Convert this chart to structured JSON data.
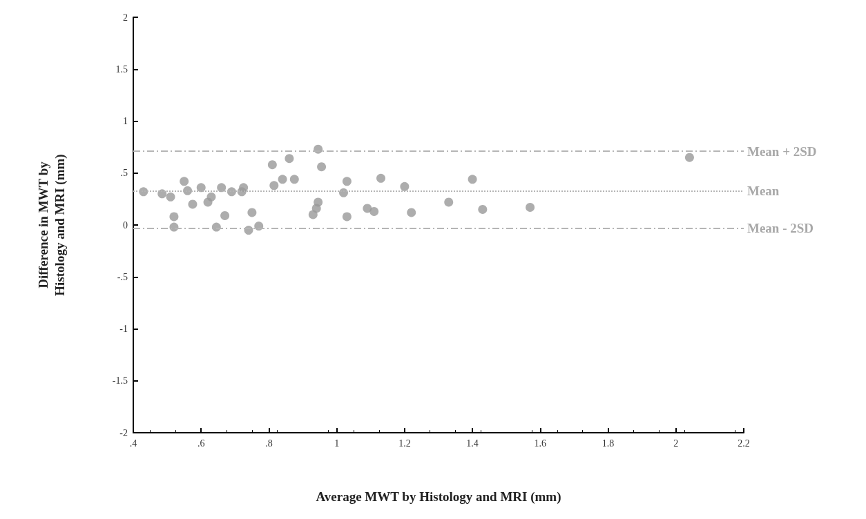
{
  "chart_data": {
    "type": "scatter",
    "xlabel": "Average MWT by Histology and MRI (mm)",
    "ylabel": "Difference in MWT by\nHistology and MRI (mm)",
    "series": [
      {
        "color": "#999999",
        "x": [
          0.43,
          0.485,
          0.51,
          0.55,
          0.56,
          0.52,
          0.52,
          0.575,
          0.6,
          0.63,
          0.62,
          0.66,
          0.69,
          0.72,
          0.725,
          0.67,
          0.645,
          0.74,
          0.75,
          0.77,
          0.81,
          0.815,
          0.84,
          0.875,
          0.86,
          0.945,
          0.955,
          0.945,
          0.94,
          0.93,
          1.03,
          1.02,
          1.03,
          1.13,
          1.09,
          1.11,
          1.2,
          1.22,
          1.33,
          1.4,
          1.43,
          1.57,
          2.04
        ],
        "values": [
          0.32,
          0.3,
          0.27,
          0.42,
          0.33,
          0.08,
          -0.02,
          0.2,
          0.36,
          0.27,
          0.22,
          0.36,
          0.32,
          0.32,
          0.36,
          0.09,
          -0.02,
          -0.05,
          0.12,
          -0.01,
          0.58,
          0.38,
          0.44,
          0.44,
          0.64,
          0.73,
          0.56,
          0.22,
          0.16,
          0.1,
          0.42,
          0.31,
          0.08,
          0.45,
          0.16,
          0.13,
          0.37,
          0.12,
          0.22,
          0.44,
          0.15,
          0.17,
          0.65
        ]
      }
    ],
    "xlim": [
      0.4,
      2.2
    ],
    "xticks": [
      {
        "value": 0.4,
        "label": ".4"
      },
      {
        "value": 0.6,
        "label": ".6"
      },
      {
        "value": 0.8,
        "label": ".8"
      },
      1,
      1.2,
      1.4,
      1.6,
      1.8,
      2,
      2.2
    ],
    "ylim": [
      -2,
      2
    ],
    "yticks": [
      -2,
      -1.5,
      -1,
      {
        "value": -0.5,
        "label": "-.5"
      },
      0,
      {
        "value": 0.5,
        "label": ".5"
      },
      1,
      1.5,
      2
    ],
    "ref_lines": [
      {
        "axis": "y",
        "value": 0.71,
        "label": "Mean + 2SD",
        "color": "#b5b5b5",
        "line_style": "dashed"
      },
      {
        "axis": "y",
        "value": 0.33,
        "label": "Mean",
        "color": "#b5b5b5",
        "line_style": "dotted"
      },
      {
        "axis": "y",
        "value": -0.03,
        "label": "Mean - 2SD",
        "color": "#b5b5b5",
        "line_style": "dashed"
      }
    ],
    "marker": "circle",
    "grid": false
  }
}
